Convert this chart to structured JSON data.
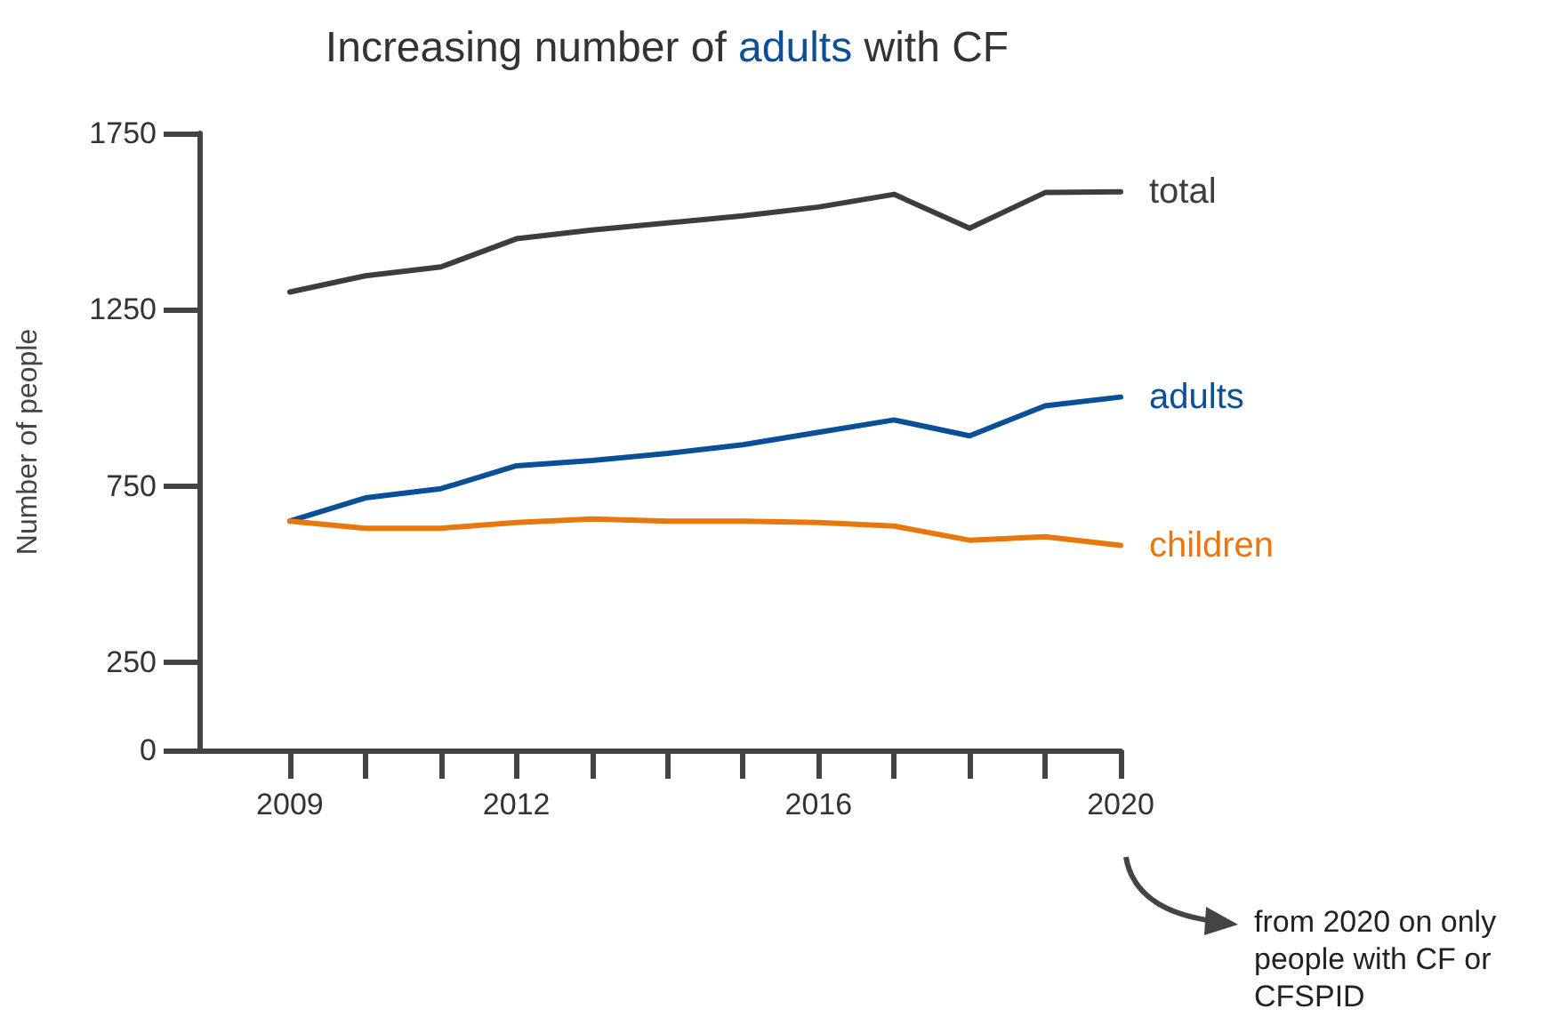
{
  "chart_data": {
    "type": "line",
    "title": "Increasing number of adults with CF",
    "ylabel": "Number of people",
    "x": [
      2009,
      2010,
      2011,
      2012,
      2013,
      2014,
      2015,
      2016,
      2017,
      2018,
      2019,
      2020
    ],
    "series": [
      {
        "name": "total",
        "color": "#3d3d3d",
        "values": [
          1300,
          1346,
          1371,
          1451,
          1476,
          1496,
          1516,
          1541,
          1577,
          1481,
          1582,
          1584
        ]
      },
      {
        "name": "adults",
        "color": "#0b4f96",
        "values": [
          650,
          716,
          742,
          807,
          822,
          842,
          867,
          902,
          937,
          892,
          977,
          1002
        ]
      },
      {
        "name": "children",
        "color": "#e8770e",
        "values": [
          650,
          630,
          630,
          646,
          656,
          650,
          650,
          646,
          636,
          596,
          606,
          581
        ]
      }
    ],
    "xlim": [
      2007.8,
      2020
    ],
    "xticks": [
      2009,
      {
        "value": 2010,
        "label": null
      },
      {
        "value": 2011,
        "label": null
      },
      2012,
      {
        "value": 2013,
        "label": null
      },
      {
        "value": 2014,
        "label": null
      },
      {
        "value": 2015,
        "label": null
      },
      2016,
      {
        "value": 2017,
        "label": null
      },
      {
        "value": 2018,
        "label": null
      },
      {
        "value": 2019,
        "label": null
      },
      2020
    ],
    "ylim": [
      0,
      1750
    ],
    "yticks": [
      0,
      250,
      750,
      1250,
      1750
    ],
    "grid": false,
    "legend": false,
    "marker": "none",
    "line_style": "solid",
    "annotations": [
      "from 2020 on only people with CF or CFSPID"
    ]
  }
}
